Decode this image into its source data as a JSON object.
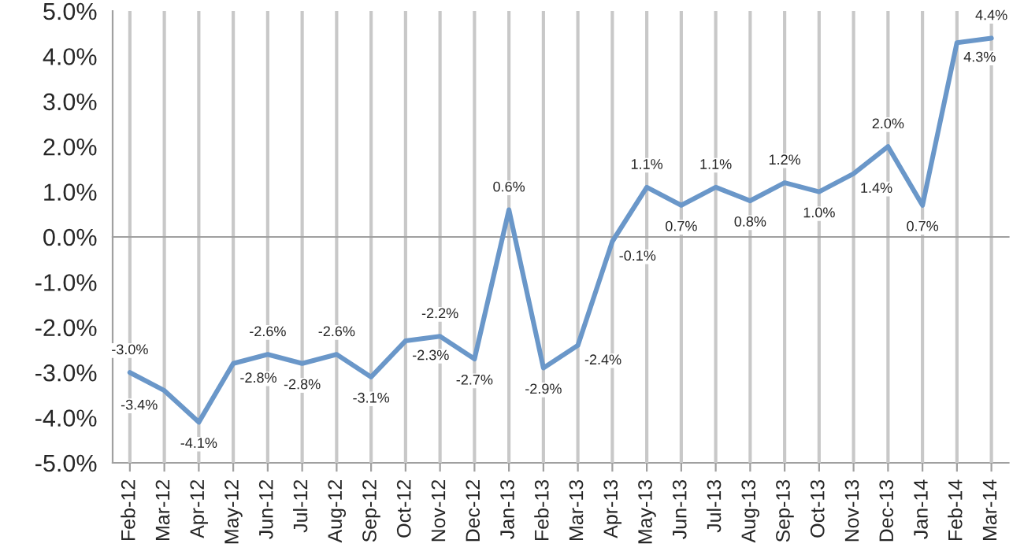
{
  "chart_data": {
    "type": "line",
    "categories": [
      "Feb-12",
      "Mar-12",
      "Apr-12",
      "May-12",
      "Jun-12",
      "Jul-12",
      "Aug-12",
      "Sep-12",
      "Oct-12",
      "Nov-12",
      "Dec-12",
      "Jan-13",
      "Feb-13",
      "Mar-13",
      "Apr-13",
      "May-13",
      "Jun-13",
      "Jul-13",
      "Aug-13",
      "Sep-13",
      "Oct-13",
      "Nov-13",
      "Dec-13",
      "Jan-14",
      "Feb-14",
      "Mar-14"
    ],
    "series": [
      {
        "color": "#6a97c9",
        "values": [
          -3.0,
          -3.4,
          -4.1,
          -2.8,
          -2.6,
          -2.8,
          -2.6,
          -3.1,
          -2.3,
          -2.2,
          -2.7,
          0.6,
          -2.9,
          -2.4,
          -0.1,
          1.1,
          0.7,
          1.1,
          0.8,
          1.2,
          1.0,
          1.4,
          2.0,
          0.7,
          4.3,
          4.4
        ]
      }
    ],
    "value_labels": [
      "-3.0%",
      "-3.4%",
      "-4.1%",
      "-2.8%",
      "-2.6%",
      "-2.8%",
      "-2.6%",
      "-3.1%",
      "-2.3%",
      "-2.2%",
      "-2.7%",
      "0.6%",
      "-2.9%",
      "-2.4%",
      "-0.1%",
      "1.1%",
      "0.7%",
      "1.1%",
      "0.8%",
      "1.2%",
      "1.0%",
      "1.4%",
      "2.0%",
      "0.7%",
      "4.3%",
      "4.4%"
    ],
    "ylim": [
      -5.0,
      5.0
    ],
    "yticks": [
      {
        "value": -5.0,
        "label": "-5.0%"
      },
      {
        "value": -4.0,
        "label": "-4.0%"
      },
      {
        "value": -3.0,
        "label": "-3.0%"
      },
      {
        "value": -2.0,
        "label": "-2.0%"
      },
      {
        "value": -1.0,
        "label": "-1.0%"
      },
      {
        "value": 0.0,
        "label": "0.0%"
      },
      {
        "value": 1.0,
        "label": "1.0%"
      },
      {
        "value": 2.0,
        "label": "2.0%"
      },
      {
        "value": 3.0,
        "label": "3.0%"
      },
      {
        "value": 4.0,
        "label": "4.0%"
      },
      {
        "value": 5.0,
        "label": "5.0%"
      }
    ],
    "grid": "x",
    "marker": "none",
    "line_style": "solid",
    "legend": false
  }
}
